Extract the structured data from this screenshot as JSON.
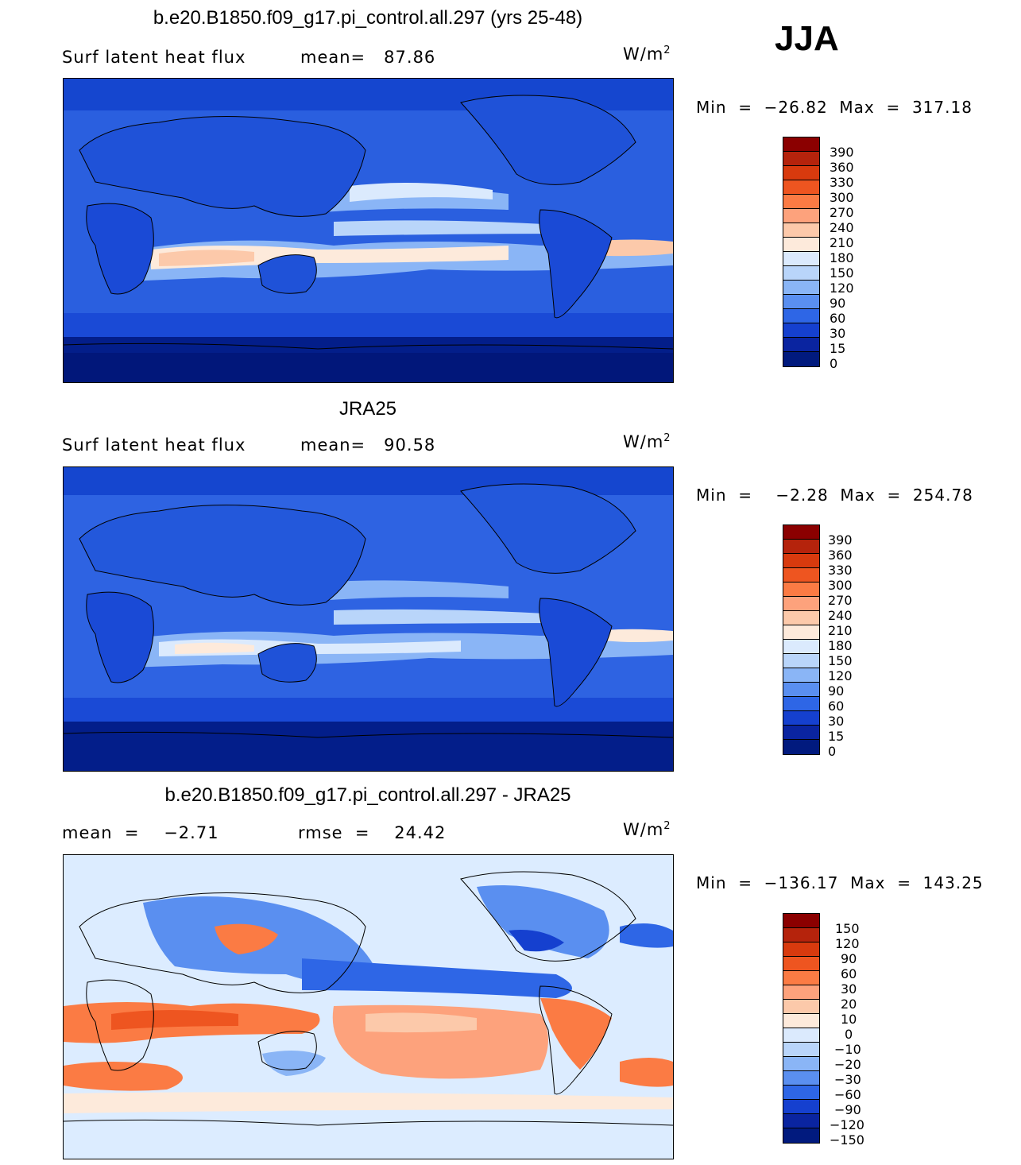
{
  "season": "JJA",
  "panels": [
    {
      "title": "b.e20.B1850.f09_g17.pi_control.all.297 (yrs 25-48)",
      "left_stat": "Surf latent heat flux",
      "right_stat": "mean=   87.86",
      "units": "W/m",
      "units_exp": "2",
      "minmax": "Min  =  −26.82  Max  =  317.18",
      "colorbar_labels": [
        "390",
        "360",
        "330",
        "300",
        "270",
        "240",
        "210",
        "180",
        "150",
        "120",
        "90",
        "60",
        "30",
        "15",
        "0"
      ]
    },
    {
      "title": "JRA25",
      "left_stat": "Surf latent heat flux",
      "right_stat": "mean=   90.58",
      "units": "W/m",
      "units_exp": "2",
      "minmax": "Min  =    −2.28  Max  =  254.78",
      "colorbar_labels": [
        "390",
        "360",
        "330",
        "300",
        "270",
        "240",
        "210",
        "180",
        "150",
        "120",
        "90",
        "60",
        "30",
        "15",
        "0"
      ]
    },
    {
      "title": "b.e20.B1850.f09_g17.pi_control.all.297 - JRA25",
      "left_stat": "mean  =    −2.71",
      "right_stat": "rmse  =    24.42",
      "units": "W/m",
      "units_exp": "2",
      "minmax": "Min  =  −136.17  Max  =  143.25",
      "colorbar_labels": [
        "150",
        "120",
        "90",
        "60",
        "30",
        "20",
        "10",
        "0",
        "−10",
        "−20",
        "−30",
        "−60",
        "−90",
        "−120",
        "−150"
      ]
    }
  ],
  "colors": {
    "colorbar": [
      "#8b0000",
      "#b5230c",
      "#d83a0e",
      "#ee5520",
      "#fb7b44",
      "#fda27c",
      "#fcc9aa",
      "#fdeadb",
      "#dbeafd",
      "#b9d5fa",
      "#8ab5f6",
      "#5a8ff0",
      "#2e66e6",
      "#1540cf",
      "#0a24a0",
      "#011a7e"
    ],
    "map_fields": {
      "model": "#2b5fe0",
      "obs": "#2e63e2",
      "diff": "#dcecff"
    },
    "land_outline": "#000000"
  }
}
